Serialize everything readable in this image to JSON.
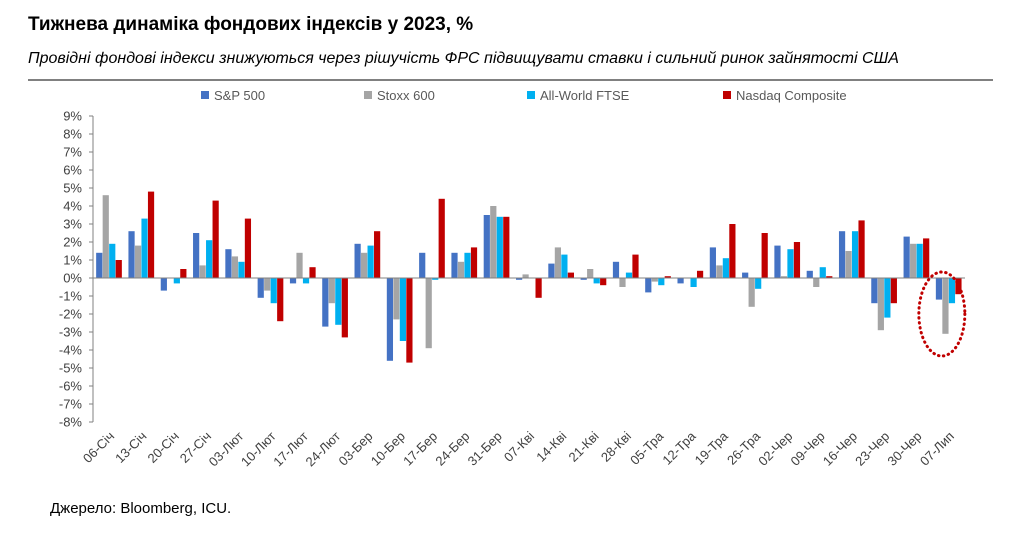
{
  "chart_data": {
    "type": "bar",
    "title": "Тижнева динаміка фондових індексів у 2023, %",
    "subtitle": "Провідні фондові індекси знижуються через рішучість ФРС підвищувати ставки і сильний ринок зайнятості США",
    "xlabel": "",
    "ylabel": "",
    "ylim": [
      -8,
      9
    ],
    "grid": false,
    "legend_position": "top",
    "y_tick_labels": [
      "9%",
      "8%",
      "7%",
      "6%",
      "5%",
      "4%",
      "3%",
      "2%",
      "1%",
      "0%",
      "-1%",
      "-2%",
      "-3%",
      "-4%",
      "-5%",
      "-6%",
      "-7%",
      "-8%"
    ],
    "categories": [
      "06-Січ",
      "13-Січ",
      "20-Січ",
      "27-Січ",
      "03-Лют",
      "10-Лют",
      "17-Лют",
      "24-Лют",
      "03-Бер",
      "10-Бер",
      "17-Бер",
      "24-Бер",
      "31-Бер",
      "07-Кві",
      "14-Кві",
      "21-Кві",
      "28-Кві",
      "05-Тра",
      "12-Тра",
      "19-Тра",
      "26-Тра",
      "02-Чер",
      "09-Чер",
      "16-Чер",
      "23-Чер",
      "30-Чер",
      "07-Лип"
    ],
    "series": [
      {
        "name": "S&P 500",
        "color": "#4472C4",
        "values": [
          1.4,
          2.6,
          -0.7,
          2.5,
          1.6,
          -1.1,
          -0.3,
          -2.7,
          1.9,
          -4.6,
          1.4,
          1.4,
          3.5,
          -0.1,
          0.8,
          -0.1,
          0.9,
          -0.8,
          -0.3,
          1.7,
          0.3,
          1.8,
          0.4,
          2.6,
          -1.4,
          2.3,
          -1.2
        ]
      },
      {
        "name": "Stoxx 600",
        "color": "#A5A5A5",
        "values": [
          4.6,
          1.8,
          0.0,
          0.7,
          1.2,
          -0.7,
          1.4,
          -1.4,
          1.4,
          -2.3,
          -3.9,
          0.9,
          4.0,
          0.2,
          1.7,
          0.5,
          -0.5,
          -0.2,
          0.0,
          0.7,
          -1.6,
          0.1,
          -0.5,
          1.5,
          -2.9,
          1.9,
          -3.1
        ]
      },
      {
        "name": "All-World FTSE",
        "color": "#00B0F0",
        "values": [
          1.9,
          3.3,
          -0.3,
          2.1,
          0.9,
          -1.4,
          -0.3,
          -2.6,
          1.8,
          -3.5,
          -0.1,
          1.4,
          3.4,
          0.0,
          1.3,
          -0.3,
          0.3,
          -0.4,
          -0.5,
          1.1,
          -0.6,
          1.6,
          0.6,
          2.6,
          -2.2,
          1.9,
          -1.4
        ]
      },
      {
        "name": "Nasdaq Composite",
        "color": "#C00000",
        "values": [
          1.0,
          4.8,
          0.5,
          4.3,
          3.3,
          -2.4,
          0.6,
          -3.3,
          2.6,
          -4.7,
          4.4,
          1.7,
          3.4,
          -1.1,
          0.3,
          -0.4,
          1.3,
          0.1,
          0.4,
          3.0,
          2.5,
          2.0,
          0.1,
          3.2,
          -1.4,
          2.2,
          -0.9
        ]
      }
    ],
    "highlight": {
      "category_index": 26,
      "color": "#C00000"
    }
  },
  "source": "Джерело: Bloomberg, ICU."
}
